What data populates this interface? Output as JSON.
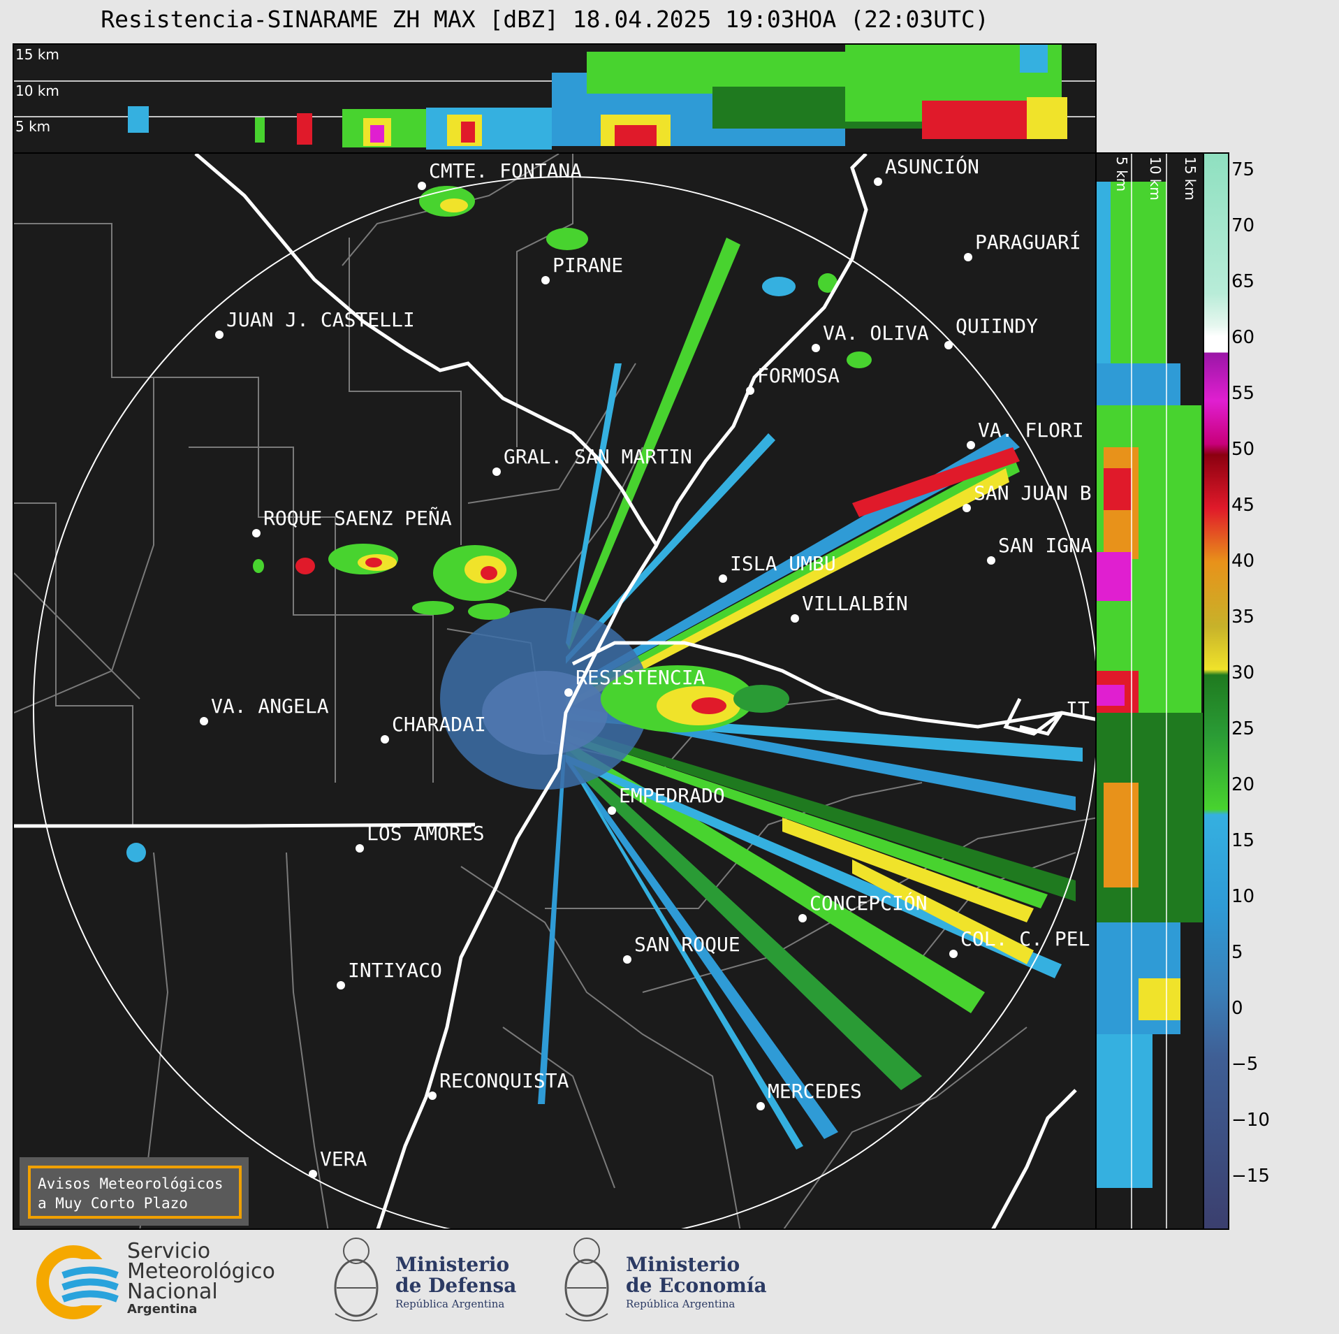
{
  "title": "Resistencia-SINARAME ZH MAX [dBZ] 18.04.2025 19:03HOA (22:03UTC)",
  "top_section": {
    "height_labels": [
      "15 km",
      "10 km",
      "5 km"
    ]
  },
  "right_section": {
    "height_labels": [
      "5 km",
      "10 km",
      "15 km"
    ]
  },
  "colorbar": {
    "ticks": [
      "75",
      "70",
      "65",
      "60",
      "55",
      "50",
      "45",
      "40",
      "35",
      "30",
      "25",
      "20",
      "15",
      "10",
      "5",
      "0",
      "−5",
      "−10",
      "−15"
    ],
    "colors": {
      "low": "#3b3f6e",
      "blue": "#2f9bd6",
      "cyan": "#35b0e0",
      "green_dark": "#1f7a1f",
      "green": "#48d32f",
      "yellow": "#f0e32a",
      "orange": "#e8921a",
      "red": "#e01a2a",
      "darkred": "#8b0010",
      "magenta": "#e01fd0",
      "purple": "#9a16a6",
      "white": "#ffffff",
      "mint": "#8fe0c0"
    }
  },
  "cities": [
    {
      "name": "CMTE. FONTANA"
    },
    {
      "name": "ASUNCIÓN"
    },
    {
      "name": "PARAGUARÍ"
    },
    {
      "name": "PIRANE"
    },
    {
      "name": "JUAN J. CASTELLI"
    },
    {
      "name": "VA. OLIVA"
    },
    {
      "name": "QUIINDY"
    },
    {
      "name": "FORMOSA"
    },
    {
      "name": "VA. FLORI"
    },
    {
      "name": "GRAL. SAN MARTIN"
    },
    {
      "name": "SAN JUAN B"
    },
    {
      "name": "ROQUE SAENZ PEÑA"
    },
    {
      "name": "SAN IGNA"
    },
    {
      "name": "ISLA UMBU"
    },
    {
      "name": "VILLALBÍN"
    },
    {
      "name": "RESISTENCIA"
    },
    {
      "name": "VA. ANGELA"
    },
    {
      "name": "CHARADAI"
    },
    {
      "name": "IT"
    },
    {
      "name": "EMPEDRADO"
    },
    {
      "name": "LOS AMORES"
    },
    {
      "name": "CONCEPCIÓN"
    },
    {
      "name": "COL. C. PEL"
    },
    {
      "name": "SAN ROQUE"
    },
    {
      "name": "INTIYACO"
    },
    {
      "name": "RECONQUISTA"
    },
    {
      "name": "MERCEDES"
    },
    {
      "name": "VERA"
    }
  ],
  "notice": {
    "line1": "Avisos Meteorológicos",
    "line2": "a Muy Corto Plazo"
  },
  "logos": {
    "smn": {
      "line1": "Servicio",
      "line2": "Meteorológico",
      "line3": "Nacional",
      "line4": "Argentina"
    },
    "defensa": {
      "line1": "Ministerio",
      "line2": "de Defensa",
      "line3": "República Argentina"
    },
    "economia": {
      "line1": "Ministerio",
      "line2": "de Economía",
      "line3": "República Argentina"
    }
  }
}
